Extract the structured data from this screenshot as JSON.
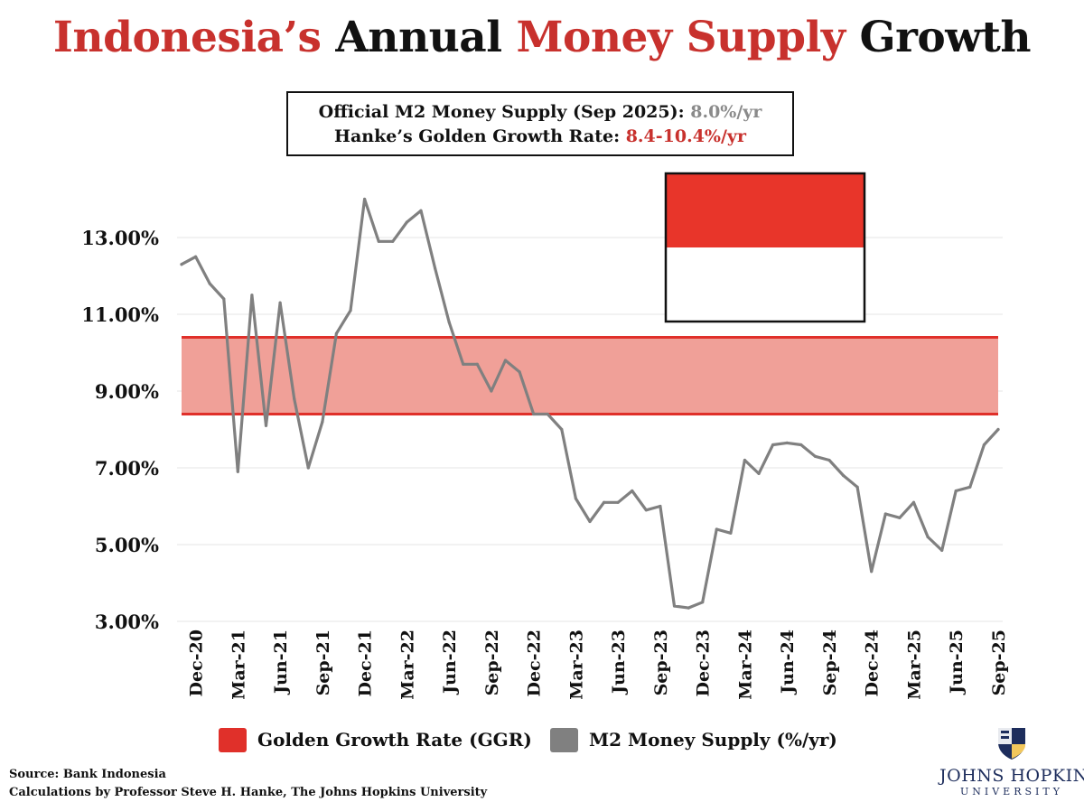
{
  "title": {
    "part1": "Indonesia’s",
    "part2": " Annual ",
    "part3": "Money Supply",
    "part4": " Growth"
  },
  "info": {
    "line1_label": "Official M2 Money Supply (Sep 2025): ",
    "line1_value": "8.0%/yr",
    "line2_label": "Hanke’s Golden Growth Rate: ",
    "line2_value": "8.4-10.4%/yr"
  },
  "colors": {
    "red": "#c8312d",
    "band_fill": "#f0a098",
    "band_edge": "#e0302a",
    "series": "#808080",
    "flag_red": "#e8352a",
    "grid": "#e4e4e4"
  },
  "legend": {
    "ggr_label": "Golden Growth Rate (GGR)",
    "m2_label": "M2 Money Supply (%/yr)"
  },
  "footer": {
    "source": "Source: Bank Indonesia",
    "calc": "Calculations by Professor Steve H. Hanke, The Johns Hopkins University"
  },
  "logo": {
    "name": "JOHNS HOPKINS",
    "sub": "UNIVERSITY"
  },
  "chart_data": {
    "type": "line",
    "title": "Indonesia’s Annual Money Supply Growth",
    "xlabel": "",
    "ylabel": "",
    "ylim": [
      3.0,
      14.0
    ],
    "yticks": [
      3,
      5,
      7,
      9,
      11,
      13
    ],
    "ytick_labels": [
      "3.00%",
      "5.00%",
      "7.00%",
      "9.00%",
      "11.00%",
      "13.00%"
    ],
    "grid": true,
    "legend_position": "bottom",
    "x_tick_labels": [
      "Dec-20",
      "Mar-21",
      "Jun-21",
      "Sep-21",
      "Dec-21",
      "Mar-22",
      "Jun-22",
      "Sep-22",
      "Dec-22",
      "Mar-23",
      "Jun-23",
      "Sep-23",
      "Dec-23",
      "Mar-24",
      "Jun-24",
      "Sep-24",
      "Dec-24",
      "Mar-25",
      "Jun-25",
      "Sep-25"
    ],
    "band": {
      "name": "Golden Growth Rate (GGR)",
      "low": 8.4,
      "high": 10.4
    },
    "series": [
      {
        "name": "M2 Money Supply (%/yr)",
        "x": [
          "Nov-20",
          "Dec-20",
          "Jan-21",
          "Feb-21",
          "Mar-21",
          "Apr-21",
          "May-21",
          "Jun-21",
          "Jul-21",
          "Aug-21",
          "Sep-21",
          "Oct-21",
          "Nov-21",
          "Dec-21",
          "Jan-22",
          "Feb-22",
          "Mar-22",
          "Apr-22",
          "May-22",
          "Jun-22",
          "Jul-22",
          "Aug-22",
          "Sep-22",
          "Oct-22",
          "Nov-22",
          "Dec-22",
          "Jan-23",
          "Feb-23",
          "Mar-23",
          "Apr-23",
          "May-23",
          "Jun-23",
          "Jul-23",
          "Aug-23",
          "Sep-23",
          "Oct-23",
          "Nov-23",
          "Dec-23",
          "Jan-24",
          "Feb-24",
          "Mar-24",
          "Apr-24",
          "May-24",
          "Jun-24",
          "Jul-24",
          "Aug-24",
          "Sep-24",
          "Oct-24",
          "Nov-24",
          "Dec-24",
          "Jan-25",
          "Feb-25",
          "Mar-25",
          "Apr-25",
          "May-25",
          "Jun-25",
          "Jul-25",
          "Aug-25",
          "Sep-25"
        ],
        "values": [
          12.3,
          12.5,
          11.8,
          11.4,
          6.9,
          11.5,
          8.1,
          11.3,
          8.8,
          7.0,
          8.2,
          10.5,
          11.1,
          14.0,
          12.9,
          12.9,
          13.4,
          13.7,
          12.2,
          10.8,
          9.7,
          9.7,
          9.0,
          9.8,
          9.5,
          8.4,
          8.4,
          8.0,
          6.2,
          5.6,
          6.1,
          6.1,
          6.4,
          5.9,
          6.0,
          3.4,
          3.35,
          3.5,
          5.4,
          5.3,
          7.2,
          6.85,
          7.6,
          7.65,
          7.6,
          7.3,
          7.2,
          6.8,
          6.5,
          4.3,
          5.8,
          5.7,
          6.1,
          5.2,
          4.85,
          6.4,
          6.5,
          7.6,
          8.0
        ]
      }
    ]
  }
}
